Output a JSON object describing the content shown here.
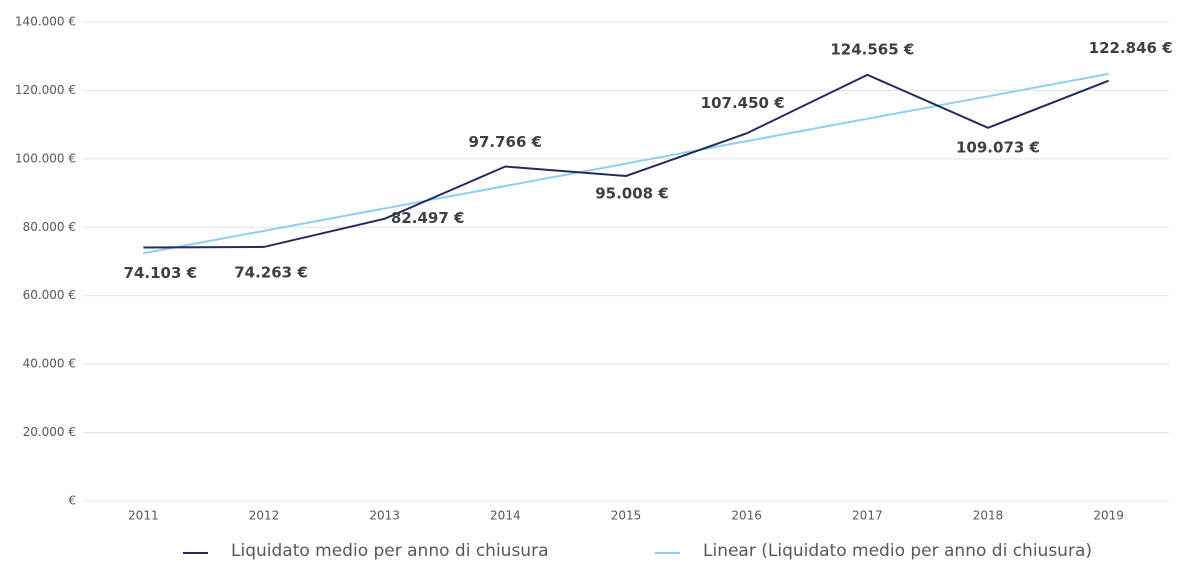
{
  "chart_data": {
    "type": "line",
    "categories": [
      "2011",
      "2012",
      "2013",
      "2014",
      "2015",
      "2016",
      "2017",
      "2018",
      "2019"
    ],
    "series": [
      {
        "name": "Liquidato medio per anno di chiusura",
        "color": "#262b5e",
        "values": [
          74103,
          74263,
          82497,
          97766,
          95008,
          107450,
          124565,
          109073,
          122846
        ],
        "value_labels": [
          "74.103 €",
          "74.263 €",
          "82.497 €",
          "97.766 €",
          "95.008 €",
          "107.450 €",
          "124.565 €",
          "109.073 €",
          "122.846 €"
        ]
      },
      {
        "name": "Linear (Liquidato medio per anno di chiusura)",
        "color": "#8fd0ee",
        "values": [
          72404,
          78958,
          85512,
          92066,
          98619,
          105173,
          111727,
          118281,
          124834
        ]
      }
    ],
    "ylim": [
      0,
      140000
    ],
    "yticks": [
      {
        "value": 0,
        "label": "€"
      },
      {
        "value": 20000,
        "label": "20.000 €"
      },
      {
        "value": 40000,
        "label": "40.000 €"
      },
      {
        "value": 60000,
        "label": "60.000 €"
      },
      {
        "value": 80000,
        "label": "80.000 €"
      },
      {
        "value": 100000,
        "label": "100.000 €"
      },
      {
        "value": 120000,
        "label": "120.000 €"
      },
      {
        "value": 140000,
        "label": "140.000 €"
      }
    ],
    "grid": true,
    "legend": "bottom"
  }
}
